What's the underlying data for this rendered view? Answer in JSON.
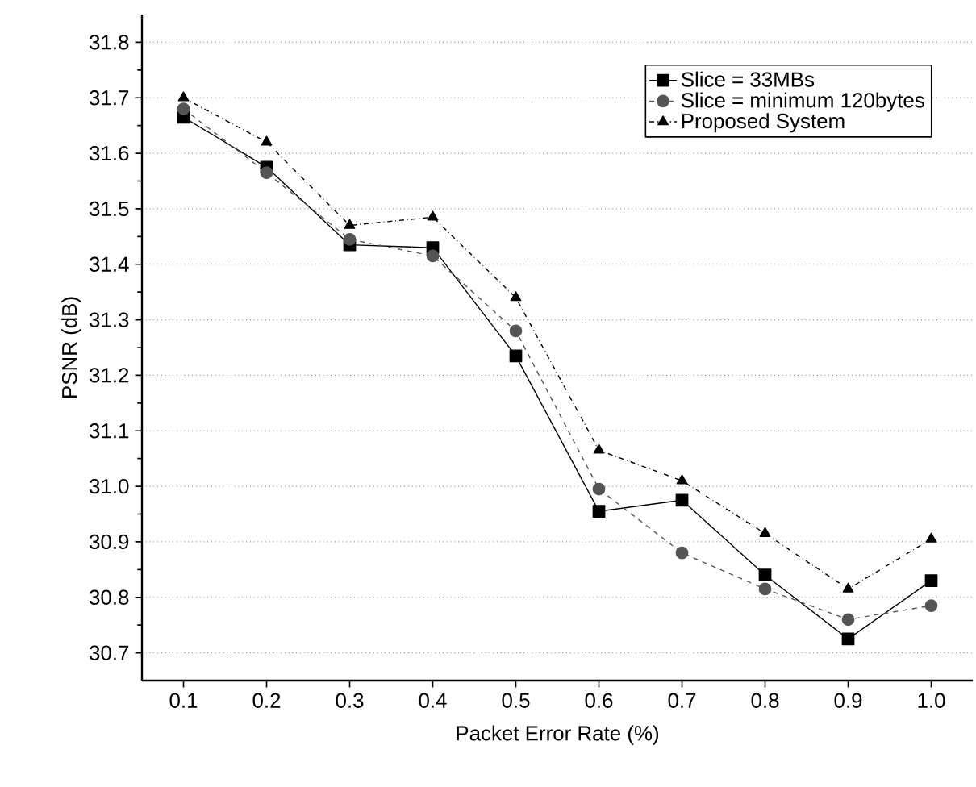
{
  "chart_data": {
    "type": "line",
    "xlabel": "Packet Error Rate (%)",
    "ylabel": "PSNR (dB)",
    "x": [
      0.1,
      0.2,
      0.3,
      0.4,
      0.5,
      0.6,
      0.7,
      0.8,
      0.9,
      1.0
    ],
    "xlim": [
      0.05,
      1.05
    ],
    "xticks": [
      0.1,
      0.2,
      0.3,
      0.4,
      0.5,
      0.6,
      0.7,
      0.8,
      0.9,
      {
        "value": 1.0,
        "label": "1.0"
      }
    ],
    "ylim": [
      30.65,
      31.85
    ],
    "yticks": [
      30.7,
      30.8,
      30.9,
      {
        "value": 31.0,
        "label": "31.0"
      },
      31.1,
      31.2,
      31.3,
      31.4,
      31.5,
      31.6,
      31.7,
      31.8
    ],
    "grid": "y",
    "legend": "top right",
    "series": [
      {
        "name": "Slice = 33MBs",
        "color": "#000000",
        "marker": "square",
        "line_style": "solid",
        "values": [
          31.665,
          31.575,
          31.435,
          31.43,
          31.235,
          30.955,
          30.975,
          30.84,
          30.725,
          30.83
        ]
      },
      {
        "name": "Slice = minimum 120bytes",
        "color": "#555555",
        "marker": "circle",
        "line_style": "dashed",
        "values": [
          31.68,
          31.565,
          31.445,
          31.415,
          31.28,
          30.995,
          30.88,
          30.815,
          30.76,
          30.785
        ]
      },
      {
        "name": "Proposed System",
        "color": "#000000",
        "marker": "triangle",
        "line_style": "dotted",
        "values": [
          31.7,
          31.62,
          31.47,
          31.485,
          31.34,
          31.065,
          31.01,
          30.915,
          30.815,
          30.905
        ]
      }
    ]
  }
}
